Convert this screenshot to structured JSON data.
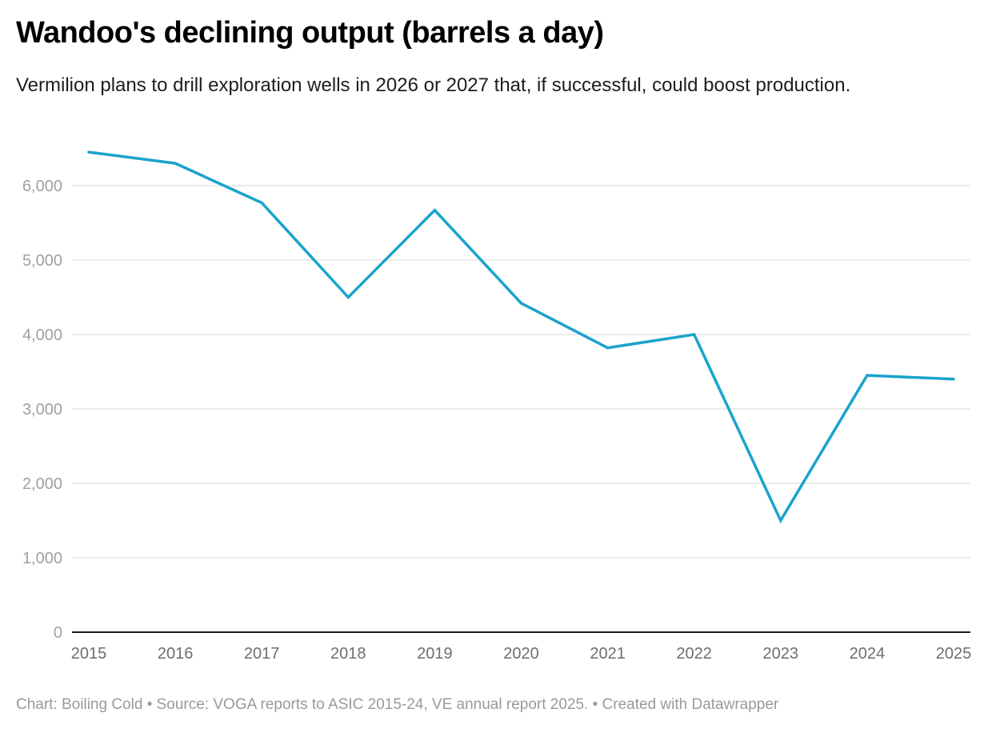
{
  "title": "Wandoo's declining output (barrels a day)",
  "subtitle": "Vermilion plans to drill exploration wells in 2026 or 2027 that, if successful, could boost production.",
  "footer": "Chart: Boiling Cold • Source: VOGA reports to ASIC 2015-24, VE annual report 2025. • Created with Datawrapper",
  "colors": {
    "line": "#1aa3cc",
    "grid": "#e5e5e5",
    "axis": "#1a1a1a"
  },
  "chart_data": {
    "type": "line",
    "title": "Wandoo's declining output (barrels a day)",
    "subtitle": "Vermilion plans to drill exploration wells in 2026 or 2027 that, if successful, could boost production.",
    "xlabel": "",
    "ylabel": "",
    "x": [
      "2015",
      "2016",
      "2017",
      "2018",
      "2019",
      "2020",
      "2021",
      "2022",
      "2023",
      "2024",
      "2025"
    ],
    "series": [
      {
        "name": "Barrels a day",
        "values": [
          6450,
          6300,
          5770,
          4500,
          5670,
          4420,
          3820,
          4000,
          1500,
          3450,
          3400
        ]
      }
    ],
    "ylim": [
      0,
      6000
    ],
    "yticks": [
      0,
      1000,
      2000,
      3000,
      4000,
      5000,
      6000
    ],
    "ytick_labels": [
      "0",
      "1,000",
      "2,000",
      "3,000",
      "4,000",
      "5,000",
      "6,000"
    ],
    "grid": true,
    "legend": "none"
  }
}
